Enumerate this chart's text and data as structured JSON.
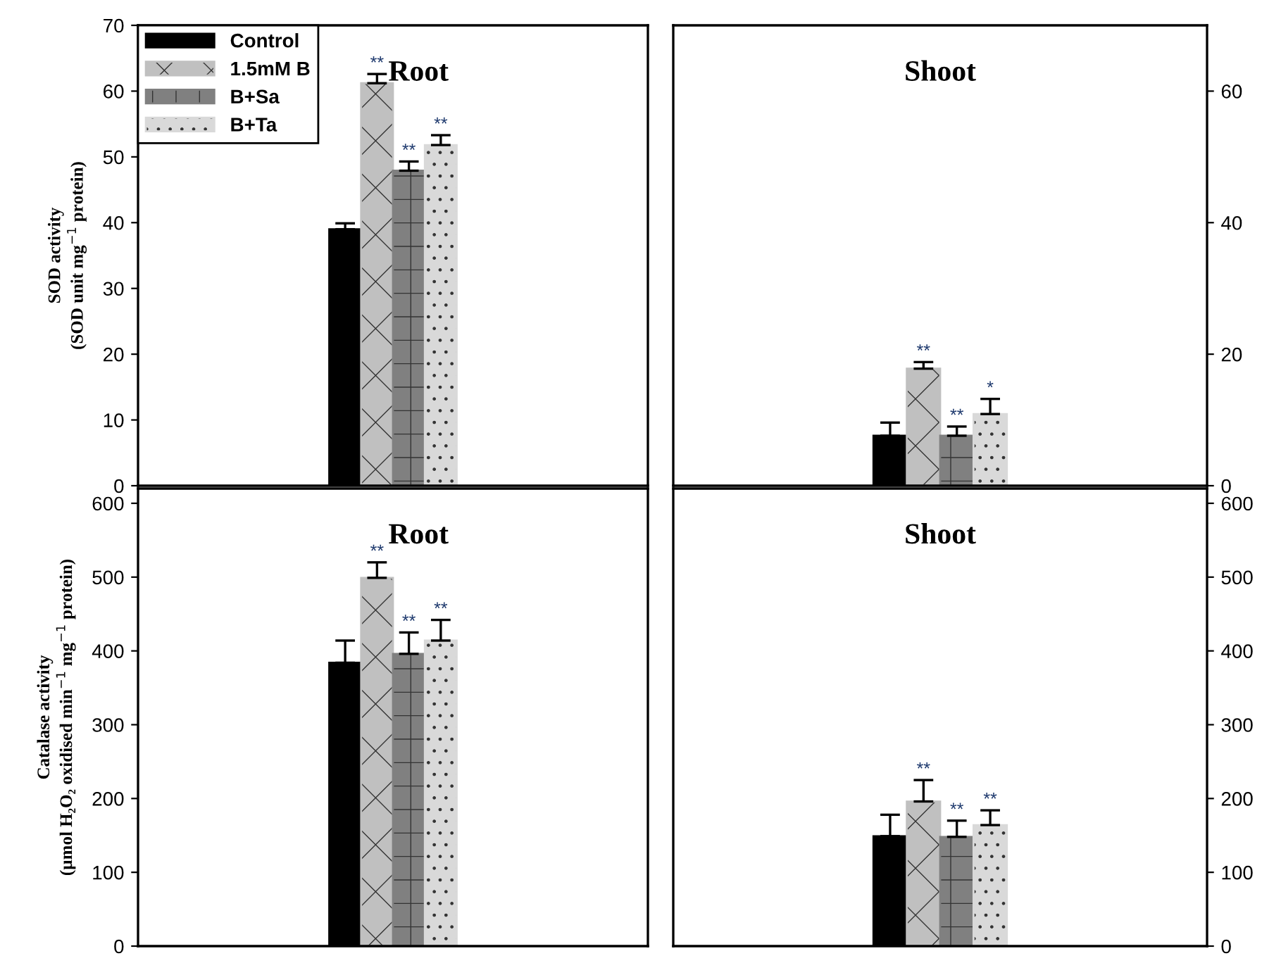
{
  "chart_data": [
    {
      "type": "bar",
      "title": "Root",
      "ylabel": "SOD activity\n(SOD unit mg$^{−1}$ protein)",
      "categories": [
        null
      ],
      "ylim": [
        0,
        70
      ],
      "yticks": [
        0,
        10,
        20,
        30,
        40,
        50,
        60,
        70
      ],
      "legend": "top left",
      "series": [
        {
          "name": "Control",
          "color": "#000000",
          "values": [
            39.0
          ],
          "errors": [
            0.9
          ],
          "value_labels": [
            null
          ]
        },
        {
          "name": "1.5mM B",
          "color": "#c0c0c0",
          "values": [
            61.2
          ],
          "errors": [
            1.4
          ],
          "value_labels": [
            "**"
          ]
        },
        {
          "name": "B+Sa",
          "color": "#808080",
          "values": [
            47.9
          ],
          "errors": [
            1.4
          ],
          "value_labels": [
            "**"
          ]
        },
        {
          "name": "B+Ta",
          "color": "#d9d9d9",
          "values": [
            51.8
          ],
          "errors": [
            1.5
          ],
          "value_labels": [
            "**"
          ]
        }
      ]
    },
    {
      "type": "bar",
      "title": "Shoot",
      "categories": [
        null
      ],
      "ylim": [
        0,
        70
      ],
      "yticks": [
        0,
        20,
        40,
        60
      ],
      "series": [
        {
          "color": "#000000",
          "values": [
            7.6
          ],
          "errors": [
            2.0
          ],
          "value_labels": [
            null
          ]
        },
        {
          "color": "#c0c0c0",
          "values": [
            17.8
          ],
          "errors": [
            1.0
          ],
          "value_labels": [
            "**"
          ]
        },
        {
          "color": "#808080",
          "values": [
            7.6
          ],
          "errors": [
            1.4
          ],
          "value_labels": [
            "**"
          ]
        },
        {
          "color": "#d9d9d9",
          "values": [
            10.9
          ],
          "errors": [
            2.3
          ],
          "value_labels": [
            "*"
          ]
        }
      ]
    },
    {
      "type": "bar",
      "title": "Root",
      "ylabel": "Catalase activity\n(µmol H₂O₂ oxidised min$^{−1}$ mg$^{−1}$ protein)",
      "categories": [
        null
      ],
      "ylim": [
        0,
        620
      ],
      "yticks": [
        0,
        100,
        200,
        300,
        400,
        500,
        600
      ],
      "series": [
        {
          "color": "#000000",
          "values": [
            384
          ],
          "errors": [
            30
          ],
          "value_labels": [
            null
          ]
        },
        {
          "color": "#c0c0c0",
          "values": [
            499
          ],
          "errors": [
            21
          ],
          "value_labels": [
            "**"
          ]
        },
        {
          "color": "#808080",
          "values": [
            396
          ],
          "errors": [
            29
          ],
          "value_labels": [
            "**"
          ]
        },
        {
          "color": "#d9d9d9",
          "values": [
            414
          ],
          "errors": [
            28
          ],
          "value_labels": [
            "**"
          ]
        }
      ]
    },
    {
      "type": "bar",
      "title": "Shoot",
      "categories": [
        null
      ],
      "ylim": [
        0,
        620
      ],
      "yticks": [
        0,
        100,
        200,
        300,
        400,
        500,
        600
      ],
      "series": [
        {
          "color": "#000000",
          "values": [
            149
          ],
          "errors": [
            29
          ],
          "value_labels": [
            null
          ]
        },
        {
          "color": "#c0c0c0",
          "values": [
            196
          ],
          "errors": [
            29
          ],
          "value_labels": [
            "**"
          ]
        },
        {
          "color": "#808080",
          "values": [
            148
          ],
          "errors": [
            22
          ],
          "value_labels": [
            "**"
          ]
        },
        {
          "color": "#d9d9d9",
          "values": [
            164
          ],
          "errors": [
            20
          ],
          "value_labels": [
            "**"
          ]
        }
      ]
    }
  ]
}
